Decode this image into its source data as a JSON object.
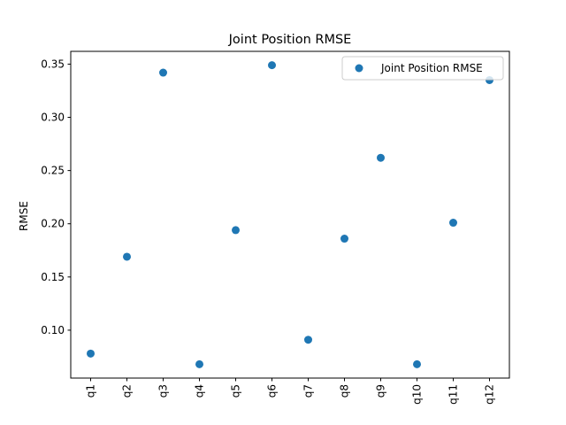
{
  "chart_data": {
    "type": "scatter",
    "title": "Joint Position RMSE",
    "xlabel": "",
    "ylabel": "RMSE",
    "categories": [
      "q1",
      "q2",
      "q3",
      "q4",
      "q5",
      "q6",
      "q7",
      "q8",
      "q9",
      "q10",
      "q11",
      "q12"
    ],
    "series": [
      {
        "name": "Joint Position RMSE",
        "color": "#1f77b4",
        "values": [
          0.078,
          0.169,
          0.342,
          0.068,
          0.194,
          0.349,
          0.091,
          0.186,
          0.262,
          0.068,
          0.201,
          0.335
        ]
      }
    ],
    "ylim": [
      0.055,
      0.362
    ],
    "yticks": [
      0.1,
      0.15,
      0.2,
      0.25,
      0.3,
      0.35
    ],
    "ytick_labels": [
      "0.10",
      "0.15",
      "0.20",
      "0.25",
      "0.30",
      "0.35"
    ],
    "grid": false,
    "legend_position": "top-right",
    "x_tick_rotation": "vertical"
  }
}
